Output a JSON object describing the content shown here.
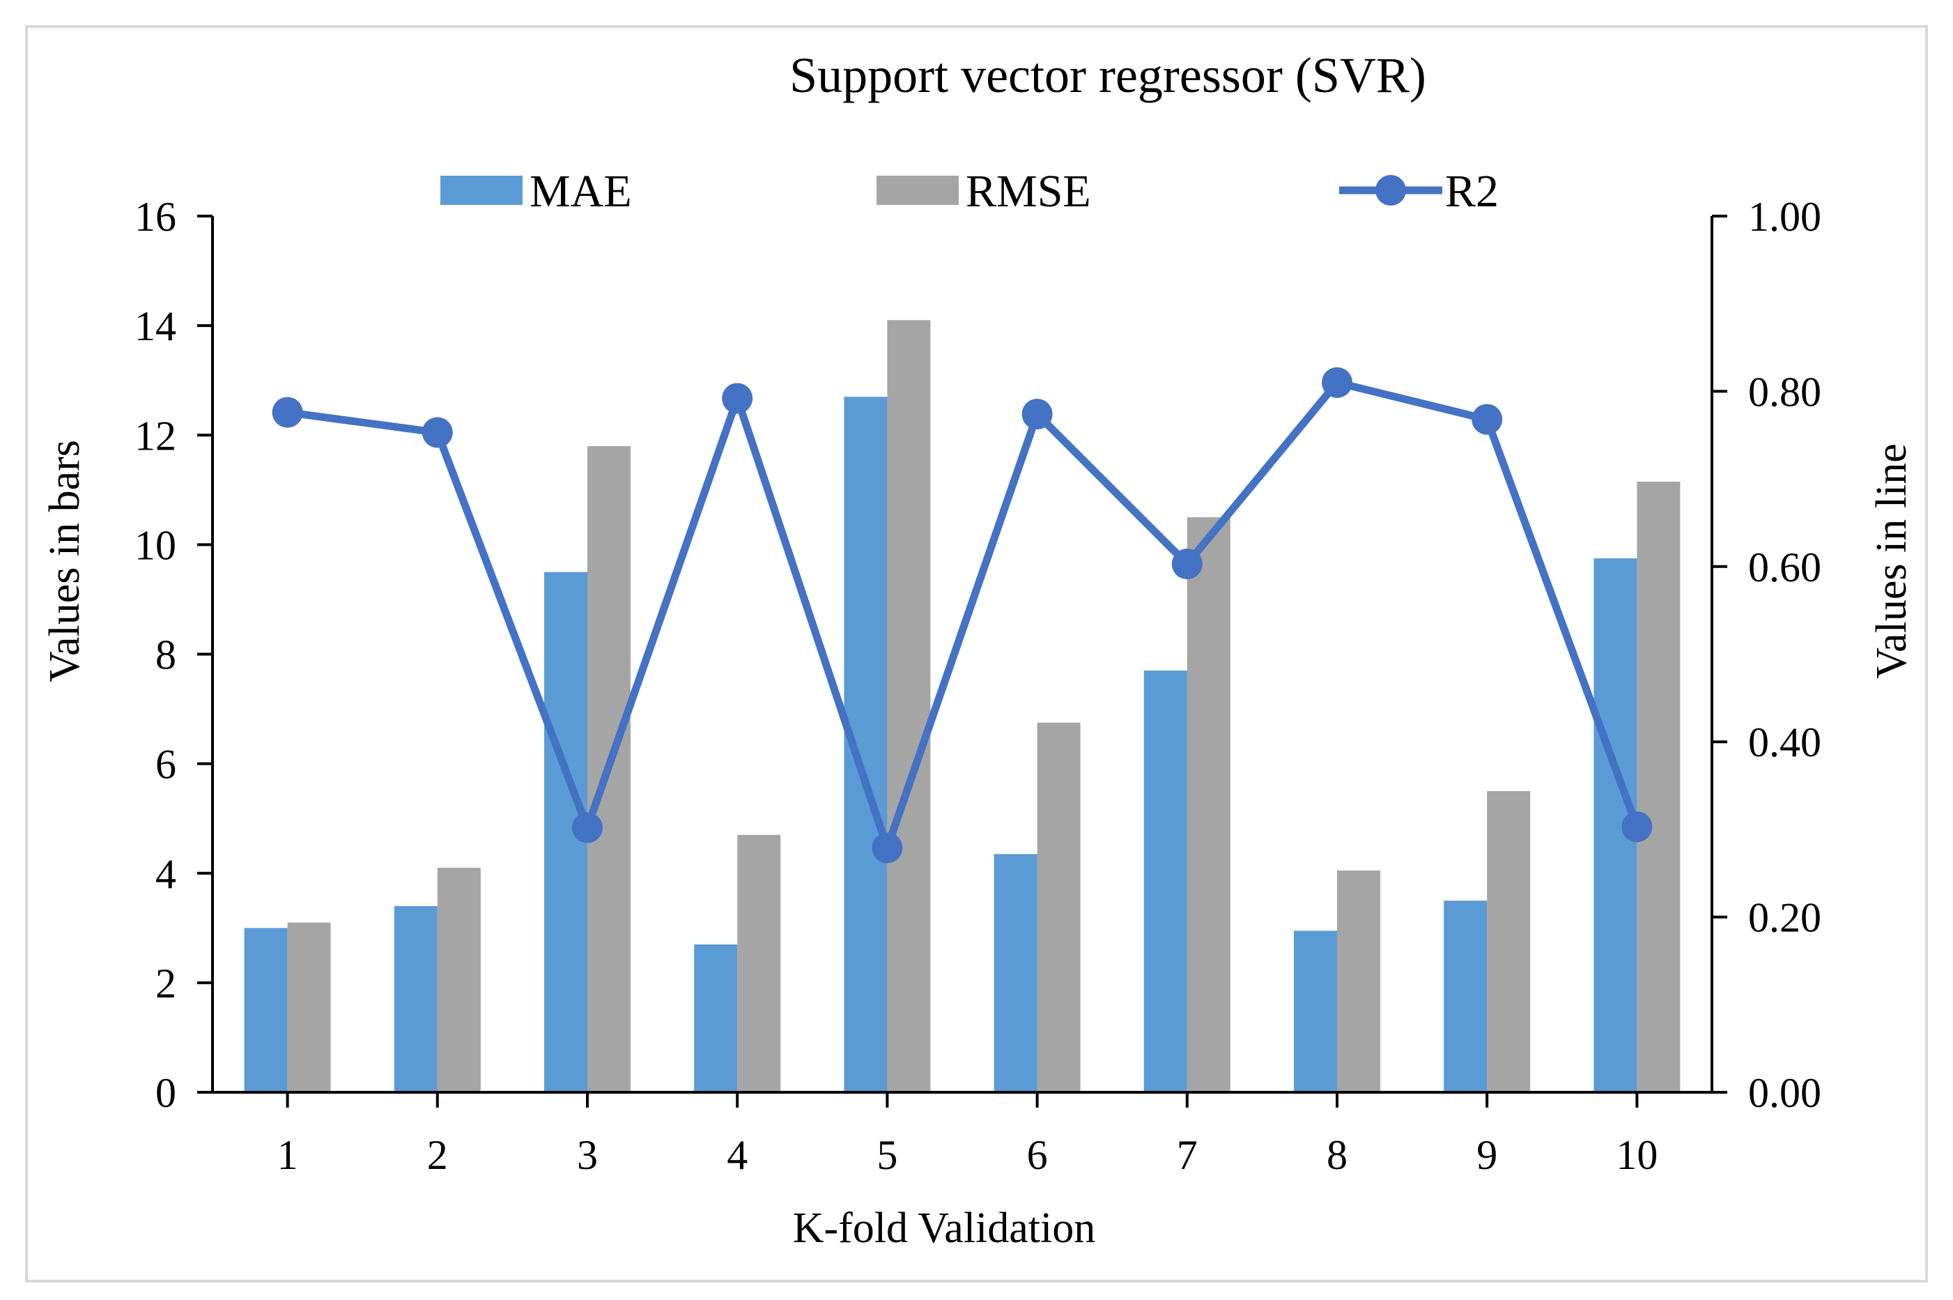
{
  "chart_data": {
    "type": "bar",
    "title": "Support vector regressor (SVR)",
    "xlabel": "K-fold Validation",
    "ylabel": "Values in bars",
    "y2label": "Values in line",
    "categories": [
      "1",
      "2",
      "3",
      "4",
      "5",
      "6",
      "7",
      "8",
      "9",
      "10"
    ],
    "ylim": [
      0,
      16
    ],
    "y2lim": [
      0,
      1
    ],
    "yticks": [
      "0",
      "2",
      "4",
      "6",
      "8",
      "10",
      "12",
      "14",
      "16"
    ],
    "y2ticks": [
      "0.00",
      "0.20",
      "0.40",
      "0.60",
      "0.80",
      "1.00"
    ],
    "grid": false,
    "legend_position": "top",
    "series": [
      {
        "name": "MAE",
        "type": "bar",
        "axis": "left",
        "color": "#5b9bd5",
        "values": [
          3.0,
          3.4,
          9.5,
          2.7,
          12.7,
          4.35,
          7.7,
          2.95,
          3.5,
          9.75
        ]
      },
      {
        "name": "RMSE",
        "type": "bar",
        "axis": "left",
        "color": "#a5a5a5",
        "values": [
          3.1,
          4.1,
          11.8,
          4.7,
          14.1,
          6.75,
          10.5,
          4.05,
          5.5,
          11.15
        ]
      },
      {
        "name": "R2",
        "type": "line",
        "axis": "right",
        "color": "#4472c4",
        "marker": "circle",
        "values": [
          0.776,
          0.753,
          0.302,
          0.792,
          0.279,
          0.774,
          0.603,
          0.81,
          0.768,
          0.303
        ]
      }
    ]
  },
  "colors": {
    "frame": "#d9d9d9",
    "axis": "#000000"
  }
}
